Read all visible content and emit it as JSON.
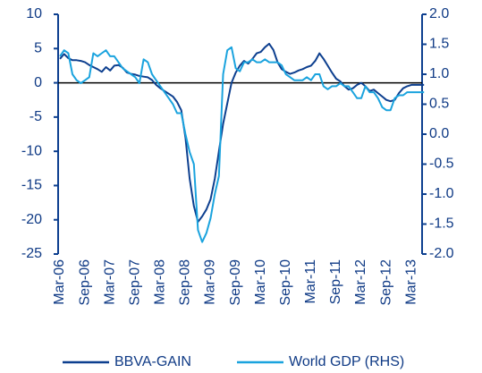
{
  "chart_data": {
    "type": "line",
    "categories": [
      "Mar-06",
      null,
      null,
      null,
      null,
      null,
      "Sep-06",
      null,
      null,
      null,
      null,
      null,
      "Mar-07",
      null,
      null,
      null,
      null,
      null,
      "Sep-07",
      null,
      null,
      null,
      null,
      null,
      "Mar-08",
      null,
      null,
      null,
      null,
      null,
      "Sep-08",
      null,
      null,
      null,
      null,
      null,
      "Mar-09",
      null,
      null,
      null,
      null,
      null,
      "Sep-09",
      null,
      null,
      null,
      null,
      null,
      "Mar-10",
      null,
      null,
      null,
      null,
      null,
      "Sep-10",
      null,
      null,
      null,
      null,
      null,
      "Mar-11",
      null,
      null,
      null,
      null,
      null,
      "Sep-11",
      null,
      null,
      null,
      null,
      null,
      "Mar-12",
      null,
      null,
      null,
      null,
      null,
      "Sep-12",
      null,
      null,
      null,
      null,
      null,
      "Mar-13",
      null,
      null,
      null
    ],
    "series": [
      {
        "name": "BBVA-GAIN",
        "color": "#0d3f8f",
        "values": [
          3.5,
          4.2,
          3.6,
          3.3,
          3.3,
          3.2,
          3.0,
          2.6,
          2.3,
          2.0,
          1.6,
          2.3,
          1.8,
          2.5,
          2.6,
          2.2,
          1.5,
          1.3,
          1.2,
          1.0,
          0.9,
          0.8,
          0.4,
          -0.3,
          -0.8,
          -1.2,
          -1.6,
          -2.0,
          -2.8,
          -4.0,
          -8,
          -14,
          -18,
          -20.3,
          -19.5,
          -18.5,
          -17,
          -14,
          -10,
          -6,
          -3,
          0,
          1.5,
          2.5,
          3.2,
          2.8,
          3.5,
          4.3,
          4.5,
          5.2,
          5.7,
          4.8,
          3.0,
          2.0,
          1.6,
          1.3,
          1.5,
          1.8,
          2.0,
          2.3,
          2.5,
          3.2,
          4.3,
          3.5,
          2.5,
          1.5,
          0.6,
          0.2,
          -0.5,
          -1.0,
          -0.8,
          -0.3,
          0.0,
          -0.5,
          -1.2,
          -1.0,
          -1.5,
          -2.0,
          -2.5,
          -2.7,
          -2.5,
          -1.5,
          -0.8,
          -0.5,
          -0.3,
          -0.3,
          -0.3,
          -0.3
        ]
      },
      {
        "name": "World GDP (RHS)",
        "color": "#1aa3de",
        "axis": "y2",
        "values": [
          1.3,
          1.4,
          1.35,
          1.0,
          0.9,
          0.85,
          0.9,
          0.95,
          1.35,
          1.3,
          1.35,
          1.4,
          1.3,
          1.3,
          1.2,
          1.1,
          1.05,
          1.0,
          0.95,
          0.85,
          1.25,
          1.2,
          1.0,
          0.9,
          0.8,
          0.7,
          0.6,
          0.5,
          0.35,
          0.35,
          0.0,
          -0.3,
          -0.5,
          -1.6,
          -1.8,
          -1.65,
          -1.4,
          -1.0,
          -0.7,
          1.0,
          1.4,
          1.45,
          1.1,
          1.05,
          1.2,
          1.2,
          1.25,
          1.2,
          1.2,
          1.25,
          1.2,
          1.2,
          1.2,
          1.15,
          1.0,
          0.95,
          0.9,
          0.9,
          0.9,
          0.95,
          0.9,
          1.0,
          1.0,
          0.8,
          0.75,
          0.8,
          0.8,
          0.85,
          0.8,
          0.8,
          0.7,
          0.6,
          0.6,
          0.8,
          0.7,
          0.7,
          0.6,
          0.45,
          0.4,
          0.4,
          0.6,
          0.65,
          0.65,
          0.7,
          0.7,
          0.7,
          0.7,
          0.7
        ]
      }
    ],
    "ylim": [
      -25,
      10
    ],
    "yticks": [
      -25,
      -20,
      -15,
      -10,
      -5,
      0,
      5,
      10
    ],
    "y2lim": [
      -2,
      2
    ],
    "y2ticks": [
      {
        "value": -2,
        "label": "-2.0"
      },
      -1.5,
      {
        "value": -1,
        "label": "-1.0"
      },
      -0.5,
      {
        "value": 0,
        "label": "0.0"
      },
      0.5,
      {
        "value": 1,
        "label": "1.0"
      },
      1.5,
      {
        "value": 2,
        "label": "2.0"
      }
    ],
    "axis_color": "#0d3f8f",
    "legend": "bottom"
  }
}
